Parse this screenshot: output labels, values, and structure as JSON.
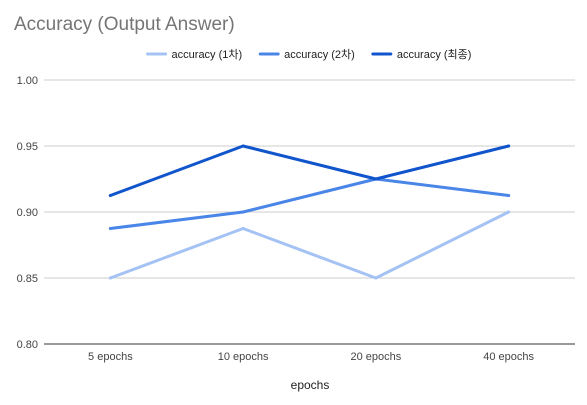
{
  "chart_data": {
    "type": "line",
    "title": "Accuracy (Output Answer)",
    "xlabel": "epochs",
    "ylabel": "",
    "categories": [
      "5 epochs",
      "10 epochs",
      "20 epochs",
      "40 epochs"
    ],
    "ylim": [
      0.8,
      1.0
    ],
    "yticks": [
      "0.80",
      "0.85",
      "0.90",
      "0.95",
      "1.00"
    ],
    "grid": true,
    "legend_position": "top",
    "series": [
      {
        "name": "accuracy (1차)",
        "color": "#a4c2f4",
        "values": [
          0.85,
          0.8875,
          0.85,
          0.9
        ]
      },
      {
        "name": "accuracy (2차)",
        "color": "#4a86e8",
        "values": [
          0.8875,
          0.9,
          0.925,
          0.9125
        ]
      },
      {
        "name": "accuracy (최종)",
        "color": "#1155cc",
        "values": [
          0.9125,
          0.95,
          0.925,
          0.95
        ]
      }
    ]
  }
}
